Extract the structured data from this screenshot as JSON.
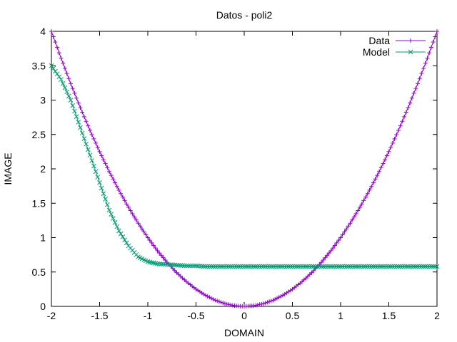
{
  "chart_data": {
    "type": "line",
    "title": "Datos - poli2",
    "xlabel": "DOMAIN",
    "ylabel": "IMAGE",
    "xlim": [
      -2,
      2
    ],
    "ylim": [
      0,
      4
    ],
    "grid": false,
    "legend_position": "top-right",
    "x_ticks": [
      "-2",
      "-1.5",
      "-1",
      "-0.5",
      "0",
      "0.5",
      "1",
      "1.5",
      "2"
    ],
    "y_ticks": [
      "0",
      "0.5",
      "1",
      "1.5",
      "2",
      "2.5",
      "3",
      "3.5",
      "4"
    ],
    "x_tick_values": [
      -2,
      -1.5,
      -1,
      -0.5,
      0,
      0.5,
      1,
      1.5,
      2
    ],
    "y_tick_values": [
      0,
      0.5,
      1,
      1.5,
      2,
      2.5,
      3,
      3.5,
      4
    ],
    "series": [
      {
        "name": "Data",
        "color": "#9400D3",
        "marker": "plus",
        "x": [
          -2.0,
          -1.9,
          -1.8,
          -1.7,
          -1.6,
          -1.5,
          -1.4,
          -1.3,
          -1.2,
          -1.1,
          -1.0,
          -0.9,
          -0.8,
          -0.7,
          -0.6,
          -0.5,
          -0.4,
          -0.3,
          -0.2,
          -0.1,
          0.0,
          0.1,
          0.2,
          0.3,
          0.4,
          0.5,
          0.6,
          0.7,
          0.8,
          0.9,
          1.0,
          1.1,
          1.2,
          1.3,
          1.4,
          1.5,
          1.6,
          1.7,
          1.8,
          1.9,
          2.0
        ],
        "y": [
          4.0,
          3.61,
          3.24,
          2.89,
          2.56,
          2.25,
          1.96,
          1.69,
          1.44,
          1.21,
          1.0,
          0.81,
          0.64,
          0.49,
          0.36,
          0.25,
          0.16,
          0.09,
          0.04,
          0.01,
          0.0,
          0.01,
          0.04,
          0.09,
          0.16,
          0.25,
          0.36,
          0.49,
          0.64,
          0.81,
          1.0,
          1.21,
          1.44,
          1.69,
          1.96,
          2.25,
          2.56,
          2.89,
          3.24,
          3.61,
          4.0
        ]
      },
      {
        "name": "Model",
        "color": "#009E73",
        "marker": "cross",
        "x": [
          -2.0,
          -1.9,
          -1.8,
          -1.7,
          -1.6,
          -1.5,
          -1.4,
          -1.3,
          -1.2,
          -1.1,
          -1.0,
          -0.9,
          -0.8,
          -0.7,
          -0.6,
          -0.5,
          -0.4,
          -0.3,
          -0.2,
          -0.1,
          0.0,
          0.1,
          0.2,
          0.3,
          0.4,
          0.5,
          0.6,
          0.7,
          0.8,
          0.9,
          1.0,
          1.1,
          1.2,
          1.3,
          1.4,
          1.5,
          1.6,
          1.7,
          1.8,
          1.9,
          2.0
        ],
        "y": [
          3.5,
          3.3,
          3.0,
          2.6,
          2.2,
          1.8,
          1.4,
          1.1,
          0.88,
          0.72,
          0.65,
          0.62,
          0.61,
          0.6,
          0.59,
          0.59,
          0.58,
          0.58,
          0.58,
          0.58,
          0.58,
          0.58,
          0.58,
          0.58,
          0.58,
          0.58,
          0.58,
          0.58,
          0.58,
          0.58,
          0.58,
          0.58,
          0.58,
          0.58,
          0.58,
          0.58,
          0.58,
          0.58,
          0.58,
          0.58,
          0.58
        ]
      }
    ]
  }
}
